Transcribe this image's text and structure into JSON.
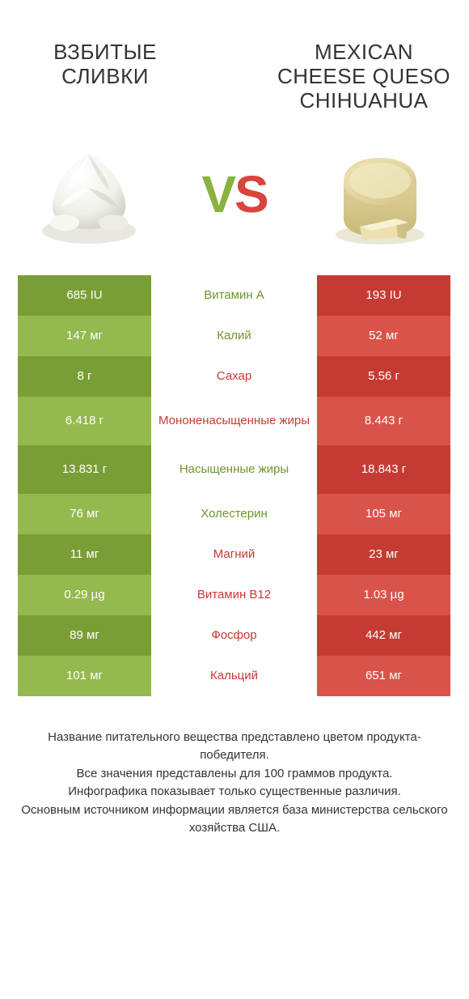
{
  "header": {
    "left_title": "ВЗБИТЫЕ СЛИВКИ",
    "right_title": "MEXICAN CHEESE QUESO CHIHUAHUA",
    "vs_v": "V",
    "vs_s": "S"
  },
  "colors": {
    "green_dark": "#7a9e36",
    "green_light": "#94b94e",
    "red_dark": "#c53b33",
    "red_light": "#d9534a",
    "text": "#333333",
    "white": "#ffffff",
    "cream_highlight": "#f5f5f0",
    "cream_shadow": "#d8d8d0",
    "cheese_light": "#e8dcb0",
    "cheese_dark": "#c9b878"
  },
  "comparison": {
    "rows": [
      {
        "left": "685 IU",
        "label": "Витамин A",
        "right": "193 IU",
        "winner": "left",
        "tall": false
      },
      {
        "left": "147 мг",
        "label": "Калий",
        "right": "52 мг",
        "winner": "left",
        "tall": false
      },
      {
        "left": "8 г",
        "label": "Сахар",
        "right": "5.56 г",
        "winner": "right",
        "tall": false
      },
      {
        "left": "6.418 г",
        "label": "Мононенасыщенные жиры",
        "right": "8.443 г",
        "winner": "right",
        "tall": true
      },
      {
        "left": "13.831 г",
        "label": "Насыщенные жиры",
        "right": "18.843 г",
        "winner": "left",
        "tall": true
      },
      {
        "left": "76 мг",
        "label": "Холестерин",
        "right": "105 мг",
        "winner": "left",
        "tall": false
      },
      {
        "left": "11 мг",
        "label": "Магний",
        "right": "23 мг",
        "winner": "right",
        "tall": false
      },
      {
        "left": "0.29 µg",
        "label": "Витамин B12",
        "right": "1.03 µg",
        "winner": "right",
        "tall": false
      },
      {
        "left": "89 мг",
        "label": "Фосфор",
        "right": "442 мг",
        "winner": "right",
        "tall": false
      },
      {
        "left": "101 мг",
        "label": "Кальций",
        "right": "651 мг",
        "winner": "right",
        "tall": false
      }
    ]
  },
  "footer": {
    "line1": "Название питательного вещества представлено цветом продукта-победителя.",
    "line2": "Все значения представлены для 100 граммов продукта.",
    "line3": "Инфографика показывает только существенные различия.",
    "line4": "Основным источником информации является база министерства сельского хозяйства США."
  }
}
